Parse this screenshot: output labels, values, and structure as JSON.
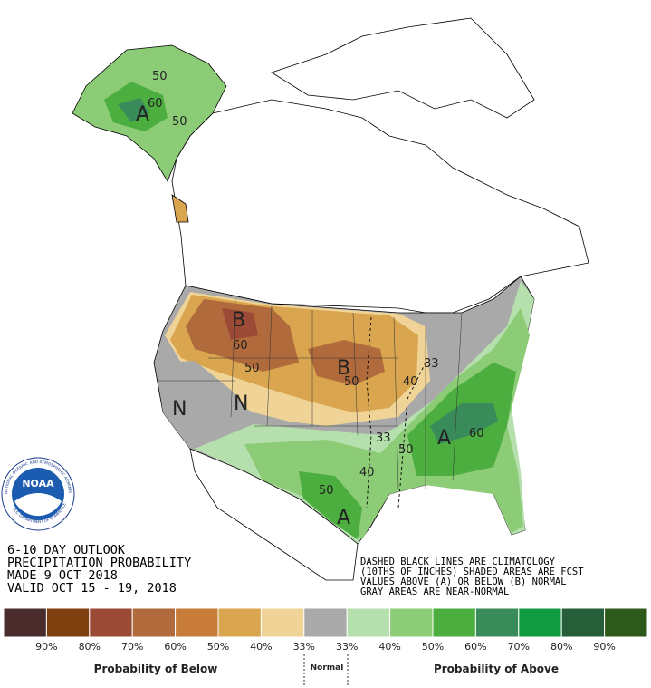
{
  "map": {
    "logo": {
      "name": "NOAA",
      "ring_top": "NATIONAL OCEANIC AND ATMOSPHERIC ADMINISTRATION",
      "ring_bottom": "U.S. DEPARTMENT OF COMMERCE"
    },
    "title_lines": [
      "6-10 DAY OUTLOOK",
      "PRECIPITATION PROBABILITY",
      "MADE  9 OCT 2018",
      "VALID  OCT 15 - 19, 2018"
    ],
    "notes": [
      "DASHED BLACK LINES ARE CLIMATOLOGY",
      "(10THS OF INCHES) SHADED AREAS ARE FCST",
      "VALUES ABOVE (A) OR BELOW (B) NORMAL",
      "GRAY AREAS ARE NEAR-NORMAL"
    ],
    "region_labels": [
      "A",
      "60",
      "50",
      "50",
      "B",
      "60",
      "50",
      "B",
      "50",
      "40",
      "33",
      "N",
      "N",
      "33",
      "40",
      "50",
      "50",
      "A",
      "60",
      "A"
    ],
    "legend": {
      "colors": [
        "#4a2c2c",
        "#7f3f0e",
        "#9b4a35",
        "#b06a3c",
        "#c77c3a",
        "#d9a54e",
        "#f0d497",
        "#a9a9a9",
        "#b5dfac",
        "#8dcc77",
        "#4cae3f",
        "#3a8b5a",
        "#129a40",
        "#275e3a",
        "#2d5a1b"
      ],
      "labels": [
        "90%",
        "80%",
        "70%",
        "60%",
        "50%",
        "40%",
        "33%",
        "33%",
        "40%",
        "50%",
        "60%",
        "70%",
        "80%",
        "90%"
      ],
      "below": "Probability of Below",
      "normal": "Normal",
      "above": "Probability of Above"
    }
  }
}
